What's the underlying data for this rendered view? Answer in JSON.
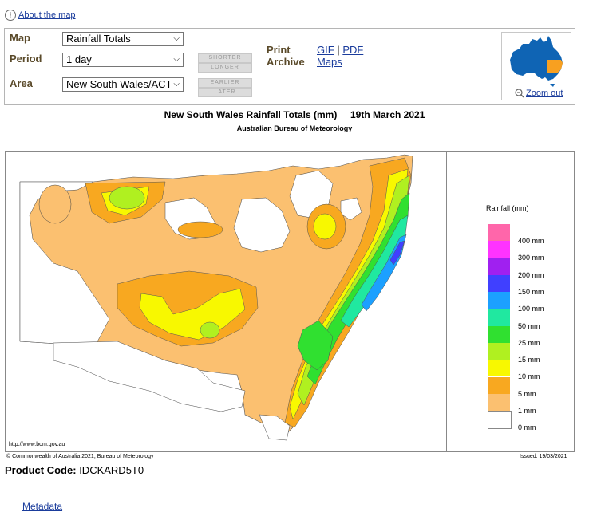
{
  "about": {
    "label": "About the map"
  },
  "controls": {
    "map_label": "Map",
    "map_value": "Rainfall Totals",
    "period_label": "Period",
    "period_value": "1 day",
    "area_label": "Area",
    "area_value": "New South Wales/ACT",
    "shorter": "SHORTER",
    "longer": "LONGER",
    "earlier": "EARLIER",
    "later": "LATER",
    "print_label": "Print",
    "archive_label": "Archive",
    "gif": "GIF",
    "sep": "|",
    "pdf": "PDF",
    "maps": "Maps",
    "zoom_out": "Zoom out"
  },
  "map": {
    "title": "New South Wales Rainfall Totals (mm)     19th March 2021",
    "subtitle": "Australian Bureau of Meteorology",
    "url": "http://www.bom.gov.au",
    "copyright": "© Commonwealth of Australia 2021, Bureau of Meteorology",
    "issued": "Issued: 19/03/2021"
  },
  "legend": {
    "title": "Rainfall (mm)",
    "items": [
      {
        "label": "400 mm",
        "color": "#ff66aa"
      },
      {
        "label": "300 mm",
        "color": "#ff33ff"
      },
      {
        "label": "200 mm",
        "color": "#a020f0"
      },
      {
        "label": "150 mm",
        "color": "#4040ff"
      },
      {
        "label": "100 mm",
        "color": "#1ca0ff"
      },
      {
        "label": "50 mm",
        "color": "#20e8a0"
      },
      {
        "label": "25 mm",
        "color": "#30e030"
      },
      {
        "label": "15 mm",
        "color": "#b0f020"
      },
      {
        "label": "10 mm",
        "color": "#f8f800"
      },
      {
        "label": "5 mm",
        "color": "#f8a820"
      },
      {
        "label": "1 mm",
        "color": "#fbc070"
      },
      {
        "label": "0 mm",
        "color": "#ffffff"
      }
    ]
  },
  "product": {
    "label": "Product Code:",
    "value": "IDCKARD5T0"
  },
  "metadata": {
    "label": "Metadata"
  }
}
